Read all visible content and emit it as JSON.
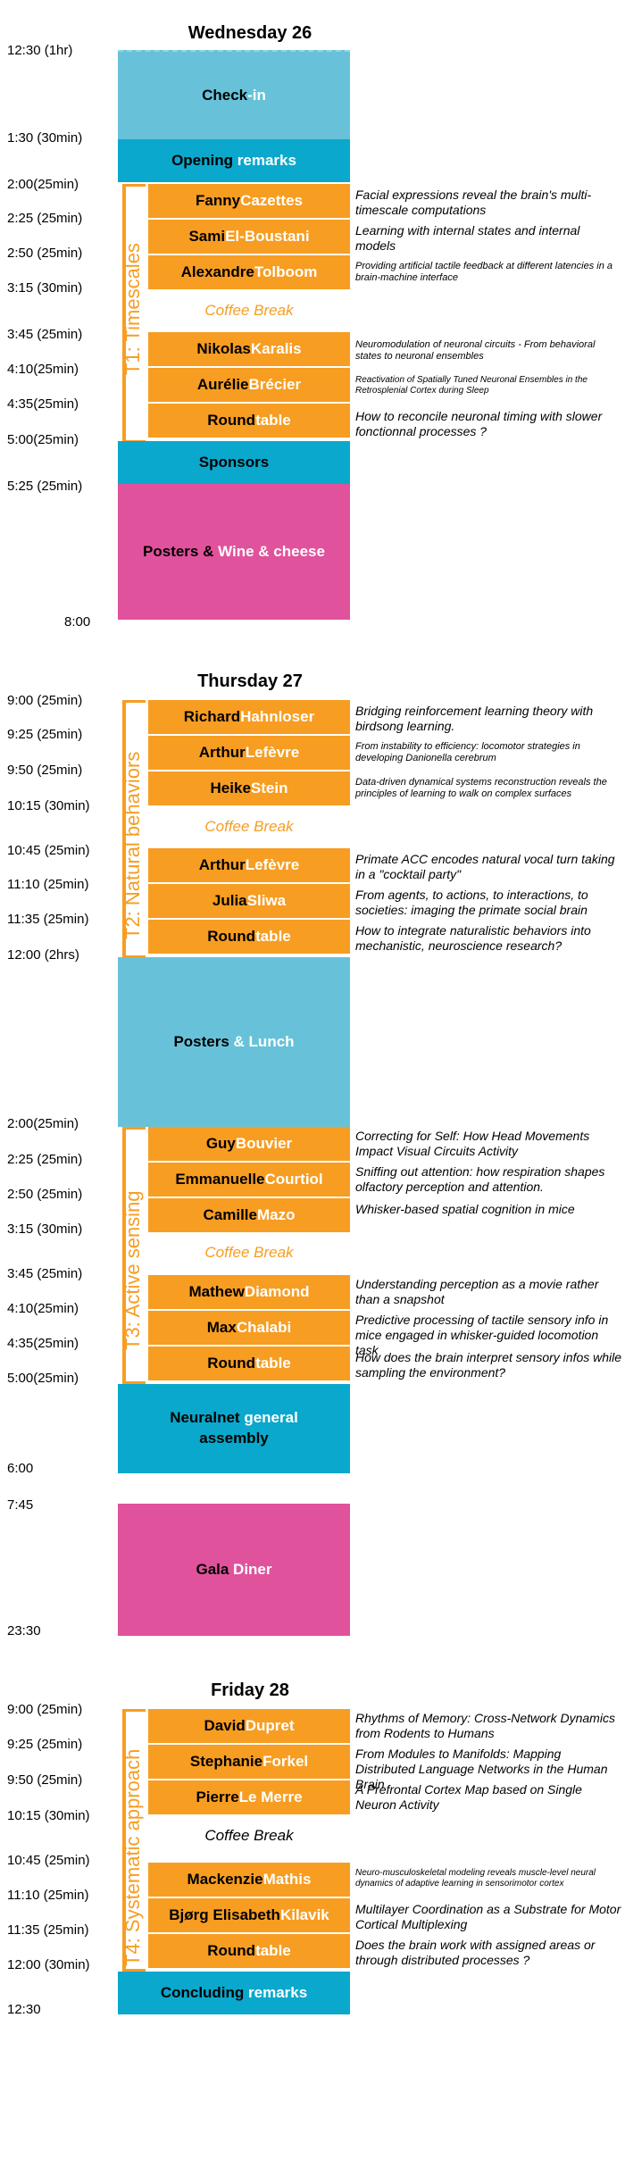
{
  "wednesday": {
    "title": "Wednesday 26",
    "times": [
      "12:30 (1hr)",
      "1:30 (30min)",
      "2:00(25min)",
      "2:25 (25min)",
      "2:50 (25min)",
      "3:15 (30min)",
      "3:45 (25min)",
      "4:10(25min)",
      "4:35(25min)",
      "5:00(25min)",
      "5:25 (25min)",
      "8:00"
    ],
    "checkin": [
      "Check",
      "-in"
    ],
    "opening": [
      "Opening",
      " remarks"
    ],
    "track": "T1: Timescales",
    "talks": [
      {
        "first": "Fanny",
        "last": " Cazettes",
        "desc": "Facial expressions reveal the brain's multi-timescale computations"
      },
      {
        "first": "Sami",
        "last": " El-Boustani",
        "desc": "Learning with internal states and internal models"
      },
      {
        "first": "Alexandre",
        "last": " Tolboom",
        "desc": "Providing artificial tactile feedback at different latencies in a brain-machine interface"
      },
      {
        "first": "Nikolas",
        "last": " Karalis",
        "desc": "Neuromodulation of neuronal circuits - From behavioral states to neuronal ensembles"
      },
      {
        "first": "Aurélie",
        "last": " Brécier",
        "desc": "Reactivation of Spatially Tuned Neuronal Ensembles in the Retrosplenial Cortex during Sleep"
      },
      {
        "first": "Round",
        "last": "table",
        "desc": "How to reconcile neuronal timing with slower fonctionnal processes ?"
      }
    ],
    "coffee": "Coffee Break",
    "sponsors": "Sponsors",
    "posters": [
      "Posters",
      " & ",
      "Wine & cheese"
    ]
  },
  "thursday": {
    "title": "Thursday 27",
    "times": [
      "9:00 (25min)",
      "9:25 (25min)",
      "9:50 (25min)",
      "10:15 (30min)",
      "10:45 (25min)",
      "11:10 (25min)",
      "11:35 (25min)",
      "12:00 (2hrs)",
      "2:00(25min)",
      "2:25 (25min)",
      "2:50 (25min)",
      "3:15 (30min)",
      "3:45 (25min)",
      "4:10(25min)",
      "4:35(25min)",
      "5:00(25min)",
      "6:00",
      "7:45",
      "23:30"
    ],
    "track2": "T2: Natural behaviors",
    "track3": "T3: Active sensing",
    "talks_t2a": [
      {
        "first": "Richard",
        "last": " Hahnloser",
        "desc": "Bridging reinforcement learning theory with birdsong learning."
      },
      {
        "first": "Arthur",
        "last": " Lefèvre",
        "desc": "From instability to efficiency: locomotor strategies in developing Danionella cerebrum"
      },
      {
        "first": "Heike",
        "last": " Stein",
        "desc": "Data-driven dynamical systems reconstruction reveals the principles of learning to walk on complex surfaces"
      }
    ],
    "talks_t2b": [
      {
        "first": "Arthur",
        "last": " Lefèvre",
        "desc": "Primate ACC encodes natural vocal turn taking in a \"cocktail party\""
      },
      {
        "first": "Julia",
        "last": " Sliwa",
        "desc": "From agents, to actions, to interactions, to societies: imaging the primate social brain"
      },
      {
        "first": "Round",
        "last": "table",
        "desc": "How to integrate naturalistic behaviors into mechanistic, neuroscience research?"
      }
    ],
    "lunch": [
      "Posters",
      " & Lunch"
    ],
    "talks_t3a": [
      {
        "first": "Guy",
        "last": " Bouvier",
        "desc": "Correcting for Self: How Head Movements Impact Visual Circuits Activity"
      },
      {
        "first": "Emmanuelle",
        "last": " Courtiol",
        "desc": "Sniffing out attention: how respiration shapes olfactory perception and attention."
      },
      {
        "first": "Camille",
        "last": " Mazo",
        "desc": "Whisker-based spatial cognition in mice"
      }
    ],
    "talks_t3b": [
      {
        "first": "Mathew",
        "last": " Diamond",
        "desc": "Understanding perception as a movie rather than a snapshot"
      },
      {
        "first": "Max",
        "last": " Chalabi",
        "desc": "Predictive processing of tactile sensory info in mice engaged in whisker-guided locomotion task"
      },
      {
        "first": "Round",
        "last": "table",
        "desc": "How does the brain interpret sensory infos while sampling the environment?"
      }
    ],
    "coffee": "Coffee Break",
    "assembly": [
      "Neuralnet",
      " general",
      "assembly"
    ],
    "gala": [
      "Gala",
      " Diner"
    ]
  },
  "friday": {
    "title": "Friday 28",
    "times": [
      "9:00 (25min)",
      "9:25 (25min)",
      "9:50 (25min)",
      "10:15 (30min)",
      "10:45 (25min)",
      "11:10 (25min)",
      "11:35 (25min)",
      "12:00 (30min)",
      "12:30"
    ],
    "track": "T4: Systematic approach",
    "talks_a": [
      {
        "first": "David",
        "last": " Dupret",
        "desc": "Rhythms of Memory: Cross-Network Dynamics from Rodents to Humans"
      },
      {
        "first": "Stephanie",
        "last": " Forkel",
        "desc": "From Modules to Manifolds: Mapping Distributed Language Networks in the Human Brain"
      },
      {
        "first": "Pierre",
        "last": " Le Merre",
        "desc": "A Prefrontal Cortex Map based on Single Neuron Activity"
      }
    ],
    "talks_b": [
      {
        "first": "Mackenzie",
        "last": " Mathis",
        "desc": "Neuro-musculoskeletal modeling reveals muscle-level neural dynamics of adaptive learning in sensorimotor cortex"
      },
      {
        "first": "Bjørg Elisabeth",
        "last": " Kilavik",
        "desc": "Multilayer Coordination as a Substrate for Motor Cortical Multiplexing"
      },
      {
        "first": "Round",
        "last": "table",
        "desc": "Does the brain work with assigned areas or through distributed processes ?"
      }
    ],
    "coffee": "Coffee Break",
    "concluding": [
      "Concluding",
      " remarks"
    ]
  }
}
